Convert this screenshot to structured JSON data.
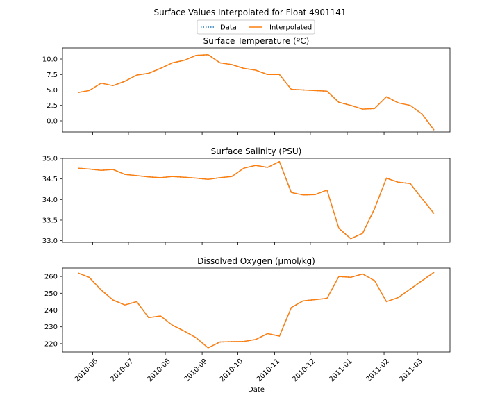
{
  "title": "Surface Values Interpolated for Float 4901141",
  "xlabel": "Date",
  "legend": {
    "data_label": "Data",
    "interp_label": "Interpolated",
    "placement": "top-center"
  },
  "colors": {
    "data": "#1f77b4",
    "interpolated": "#ff7f0e"
  },
  "x_ticks": [
    "2010-06",
    "2010-07",
    "2010-08",
    "2010-09",
    "2010-10",
    "2010-11",
    "2010-12",
    "2011-01",
    "2011-02",
    "2011-03"
  ],
  "chart_data": [
    {
      "type": "line",
      "title": "Surface Temperature (ºC)",
      "ylim": [
        -1.8,
        11.8
      ],
      "y_ticks": [
        "10.0",
        "7.5",
        "5.0",
        "2.5",
        "0.0"
      ],
      "y_tick_values": [
        10.0,
        7.5,
        5.0,
        2.5,
        0.0
      ],
      "x": [
        "2010-05-20",
        "2010-05-29",
        "2010-06-08",
        "2010-06-18",
        "2010-06-28",
        "2010-07-08",
        "2010-07-18",
        "2010-07-28",
        "2010-08-07",
        "2010-08-17",
        "2010-08-27",
        "2010-09-06",
        "2010-09-16",
        "2010-09-26",
        "2010-10-06",
        "2010-10-16",
        "2010-10-26",
        "2010-11-05",
        "2010-11-15",
        "2010-11-25",
        "2010-12-05",
        "2010-12-15",
        "2010-12-25",
        "2011-01-04",
        "2011-01-14",
        "2011-01-24",
        "2011-02-03",
        "2011-02-13",
        "2011-02-23",
        "2011-03-05",
        "2011-03-15"
      ],
      "series": [
        {
          "name": "Data",
          "values": [
            4.6,
            4.9,
            6.1,
            5.7,
            6.4,
            7.4,
            7.7,
            8.5,
            9.4,
            9.8,
            10.6,
            10.7,
            9.4,
            9.1,
            8.5,
            8.2,
            7.5,
            7.5,
            5.1,
            5.0,
            4.9,
            4.8,
            3.0,
            2.5,
            1.9,
            2.0,
            3.9,
            2.9,
            2.5,
            1.1,
            -1.5
          ]
        },
        {
          "name": "Interpolated",
          "values": [
            4.6,
            4.9,
            6.1,
            5.7,
            6.4,
            7.4,
            7.7,
            8.5,
            9.4,
            9.8,
            10.6,
            10.7,
            9.4,
            9.1,
            8.5,
            8.2,
            7.5,
            7.5,
            5.1,
            5.0,
            4.9,
            4.8,
            3.0,
            2.5,
            1.9,
            2.0,
            3.9,
            2.9,
            2.5,
            1.1,
            -1.5
          ]
        }
      ]
    },
    {
      "type": "line",
      "title": "Surface Salinity (PSU)",
      "ylim": [
        32.96,
        35.0
      ],
      "y_ticks": [
        "35.0",
        "34.5",
        "34.0",
        "33.5",
        "33.0"
      ],
      "y_tick_values": [
        35.0,
        34.5,
        34.0,
        33.5,
        33.0
      ],
      "x": [
        "2010-05-20",
        "2010-05-29",
        "2010-06-08",
        "2010-06-18",
        "2010-06-28",
        "2010-07-08",
        "2010-07-18",
        "2010-07-28",
        "2010-08-07",
        "2010-08-17",
        "2010-08-27",
        "2010-09-06",
        "2010-09-16",
        "2010-09-26",
        "2010-10-06",
        "2010-10-16",
        "2010-10-26",
        "2010-11-05",
        "2010-11-15",
        "2010-11-25",
        "2010-12-05",
        "2010-12-15",
        "2010-12-25",
        "2011-01-04",
        "2011-01-14",
        "2011-01-24",
        "2011-02-03",
        "2011-02-13",
        "2011-02-23",
        "2011-03-05",
        "2011-03-15"
      ],
      "series": [
        {
          "name": "Data",
          "values": [
            34.76,
            34.74,
            34.71,
            34.73,
            34.61,
            34.58,
            34.55,
            34.53,
            34.56,
            34.54,
            34.52,
            34.49,
            34.53,
            34.56,
            34.76,
            34.83,
            34.78,
            34.92,
            34.17,
            34.11,
            34.12,
            34.23,
            33.3,
            33.05,
            33.18,
            33.78,
            34.52,
            34.42,
            34.39,
            34.02,
            33.66
          ]
        },
        {
          "name": "Interpolated",
          "values": [
            34.76,
            34.74,
            34.71,
            34.73,
            34.61,
            34.58,
            34.55,
            34.53,
            34.56,
            34.54,
            34.52,
            34.49,
            34.53,
            34.56,
            34.76,
            34.83,
            34.78,
            34.92,
            34.17,
            34.11,
            34.12,
            34.23,
            33.3,
            33.05,
            33.18,
            33.78,
            34.52,
            34.42,
            34.39,
            34.02,
            33.66
          ]
        }
      ]
    },
    {
      "type": "line",
      "title": "Dissolved Oxygen (µmol/kg)",
      "ylim": [
        215,
        265
      ],
      "y_ticks": [
        "260",
        "250",
        "240",
        "230",
        "220"
      ],
      "y_tick_values": [
        260,
        250,
        240,
        230,
        220
      ],
      "x": [
        "2010-05-20",
        "2010-05-29",
        "2010-06-08",
        "2010-06-18",
        "2010-06-28",
        "2010-07-08",
        "2010-07-18",
        "2010-07-28",
        "2010-08-07",
        "2010-08-17",
        "2010-08-27",
        "2010-09-06",
        "2010-09-16",
        "2010-09-26",
        "2010-10-06",
        "2010-10-16",
        "2010-10-26",
        "2010-11-05",
        "2010-11-15",
        "2010-11-25",
        "2010-12-05",
        "2010-12-15",
        "2010-12-25",
        "2011-01-04",
        "2011-01-14",
        "2011-01-24",
        "2011-02-03",
        "2011-02-13",
        "2011-02-23",
        "2011-03-05",
        "2011-03-15"
      ],
      "series": [
        {
          "name": "Data",
          "values": [
            262.0,
            259.5,
            252.0,
            246.0,
            243.0,
            245.0,
            235.5,
            236.5,
            231.0,
            227.5,
            223.5,
            217.5,
            221.0,
            221.2,
            221.3,
            222.5,
            226.0,
            224.5,
            241.5,
            245.5,
            246.2,
            247.0,
            260.0,
            259.5,
            261.5,
            257.5,
            245.0,
            247.5,
            252.5,
            257.5,
            262.5
          ]
        },
        {
          "name": "Interpolated",
          "values": [
            262.0,
            259.5,
            252.0,
            246.0,
            243.0,
            245.0,
            235.5,
            236.5,
            231.0,
            227.5,
            223.5,
            217.5,
            221.0,
            221.2,
            221.3,
            222.5,
            226.0,
            224.5,
            241.5,
            245.5,
            246.2,
            247.0,
            260.0,
            259.5,
            261.5,
            257.5,
            245.0,
            247.5,
            252.5,
            257.5,
            262.5
          ]
        }
      ]
    }
  ]
}
